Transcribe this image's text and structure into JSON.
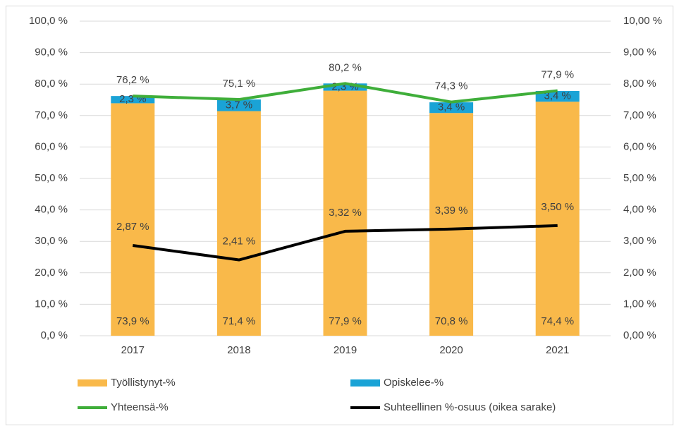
{
  "chart_data": {
    "type": "bar",
    "stacked": true,
    "grid": true,
    "legend": "bottom",
    "categories": [
      "2017",
      "2018",
      "2019",
      "2020",
      "2021"
    ],
    "series": [
      {
        "name": "Työllistynyt-%",
        "type": "bar",
        "color": "#f9b94a",
        "values": [
          73.9,
          71.4,
          77.9,
          70.8,
          74.4
        ],
        "value_labels": [
          "73,9 %",
          "71,4 %",
          "77,9 %",
          "70,8 %",
          "74,4 %"
        ]
      },
      {
        "name": "Opiskelee-%",
        "type": "bar",
        "color": "#1aa3d6",
        "values": [
          2.3,
          3.7,
          2.3,
          3.4,
          3.4
        ],
        "value_labels": [
          "2,3 %",
          "3,7 %",
          "2,3 %",
          "3,4 %",
          "3,4 %"
        ]
      },
      {
        "name": "Yhteensä-%",
        "type": "line",
        "color": "#3fae3a",
        "values": [
          76.2,
          75.1,
          80.2,
          74.3,
          77.9
        ],
        "value_labels": [
          "76,2 %",
          "75,1 %",
          "80,2 %",
          "74,3 %",
          "77,9 %"
        ]
      },
      {
        "name": "Suhteellinen %-osuus (oikea sarake)",
        "type": "line",
        "axis": "y2",
        "color": "#000000",
        "values": [
          2.87,
          2.41,
          3.32,
          3.39,
          3.5
        ],
        "value_labels": [
          "2,87 %",
          "2,41 %",
          "3,32 %",
          "3,39 %",
          "3,50 %"
        ]
      }
    ],
    "ylim": [
      0,
      100
    ],
    "yticks": [
      {
        "value": 0,
        "label": "0,0 %"
      },
      {
        "value": 10,
        "label": "10,0 %"
      },
      {
        "value": 20,
        "label": "20,0 %"
      },
      {
        "value": 30,
        "label": "30,0 %"
      },
      {
        "value": 40,
        "label": "40,0 %"
      },
      {
        "value": 50,
        "label": "50,0 %"
      },
      {
        "value": 60,
        "label": "60,0 %"
      },
      {
        "value": 70,
        "label": "70,0 %"
      },
      {
        "value": 80,
        "label": "80,0 %"
      },
      {
        "value": 90,
        "label": "90,0 %"
      },
      {
        "value": 100,
        "label": "100,0 %"
      }
    ],
    "y2lim": [
      0,
      10
    ],
    "y2ticks": [
      {
        "value": 0,
        "label": "0,00 %"
      },
      {
        "value": 1,
        "label": "1,00 %"
      },
      {
        "value": 2,
        "label": "2,00 %"
      },
      {
        "value": 3,
        "label": "3,00 %"
      },
      {
        "value": 4,
        "label": "4,00 %"
      },
      {
        "value": 5,
        "label": "5,00 %"
      },
      {
        "value": 6,
        "label": "6,00 %"
      },
      {
        "value": 7,
        "label": "7,00 %"
      },
      {
        "value": 8,
        "label": "8,00 %"
      },
      {
        "value": 9,
        "label": "9,00 %"
      },
      {
        "value": 10,
        "label": "10,00 %"
      }
    ]
  }
}
